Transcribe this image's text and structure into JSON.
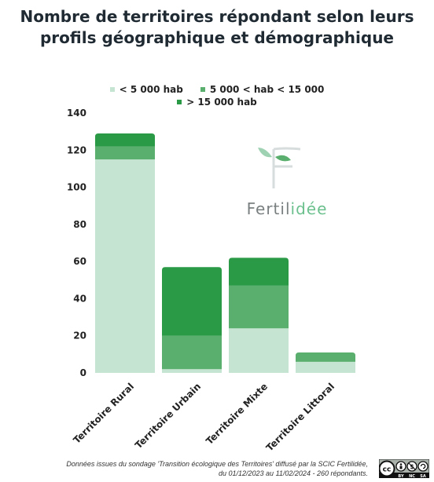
{
  "title_lines": [
    "Nombre de territoires répondant selon leurs",
    "profils géographique et démographique"
  ],
  "legend": {
    "row1": [
      "< 5 000 hab",
      "5 000 < hab < 15 000"
    ],
    "row2": [
      "> 15 000 hab"
    ]
  },
  "logo": {
    "name_part1": "Fertil",
    "name_part2": "idée"
  },
  "footer_lines": [
    "Données issues du sondage 'Transition écologique des Territoires' diffusé par la SCIC Fertilidée,",
    "du 01/12/2023 au 11/02/2024 - 260 répondants."
  ],
  "license": {
    "labels": [
      "BY",
      "NC",
      "SA"
    ]
  },
  "chart_data": {
    "type": "bar",
    "stacked": true,
    "categories": [
      "Territoire Rural",
      "Territoire Urbain",
      "Territoire Mixte",
      "Territoire Littoral"
    ],
    "series": [
      {
        "name": "< 5 000 hab",
        "values": [
          115,
          2,
          24,
          6
        ],
        "color": "#c5e5d2"
      },
      {
        "name": "5 000 < hab < 15 000",
        "values": [
          7,
          18,
          23,
          5
        ],
        "color": "#5aae6e"
      },
      {
        "name": "> 15 000 hab",
        "values": [
          7,
          37,
          15,
          0
        ],
        "color": "#2a9a46"
      }
    ],
    "ylim": [
      0,
      140
    ],
    "yticks": [
      0,
      20,
      40,
      60,
      80,
      100,
      120,
      140
    ],
    "grid": false,
    "legend_position": "top-center"
  }
}
